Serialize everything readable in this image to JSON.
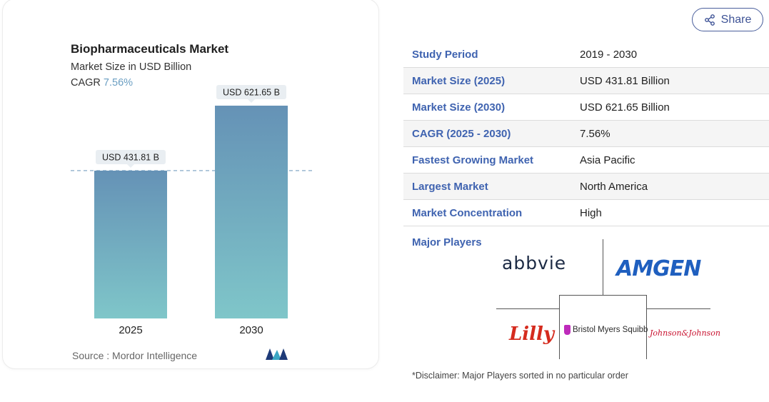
{
  "share_button": {
    "label": "Share",
    "icon": "share-icon"
  },
  "chart_data": {
    "type": "bar",
    "title": "Biopharmaceuticals Market",
    "subtitle": "Market Size in USD Billion",
    "cagr_label": "CAGR",
    "cagr_value": "7.56%",
    "categories": [
      "2025",
      "2030"
    ],
    "values": [
      431.81,
      621.65
    ],
    "data_labels": [
      "USD 431.81 B",
      "USD 621.65 B"
    ],
    "reference_line_value": 431.81,
    "ylim": [
      0,
      680
    ],
    "grid": false,
    "bar_color_top": "#6592b6",
    "bar_color_bottom": "#7fc6c9"
  },
  "source": {
    "text": "Source :  Mordor Intelligence",
    "logo": "mordor-intelligence-logo"
  },
  "info_table": [
    {
      "label": "Study Period",
      "value": "2019 - 2030"
    },
    {
      "label": "Market Size (2025)",
      "value": "USD 431.81 Billion"
    },
    {
      "label": "Market Size (2030)",
      "value": "USD 621.65 Billion"
    },
    {
      "label": "CAGR (2025 - 2030)",
      "value": "7.56%"
    },
    {
      "label": "Fastest Growing Market",
      "value": "Asia Pacific"
    },
    {
      "label": "Largest Market",
      "value": "North America"
    },
    {
      "label": "Market Concentration",
      "value": "High"
    }
  ],
  "major_players": {
    "label": "Major Players",
    "logos": [
      "abbvie",
      "AMGEN",
      "Lilly",
      "Bristol Myers Squibb",
      "Johnson&Johnson"
    ]
  },
  "disclaimer": "*Disclaimer: Major Players sorted in no particular order",
  "colors": {
    "accent": "#3f63b0",
    "share_border": "#4a5f9c",
    "cagr": "#6a9ec2"
  }
}
